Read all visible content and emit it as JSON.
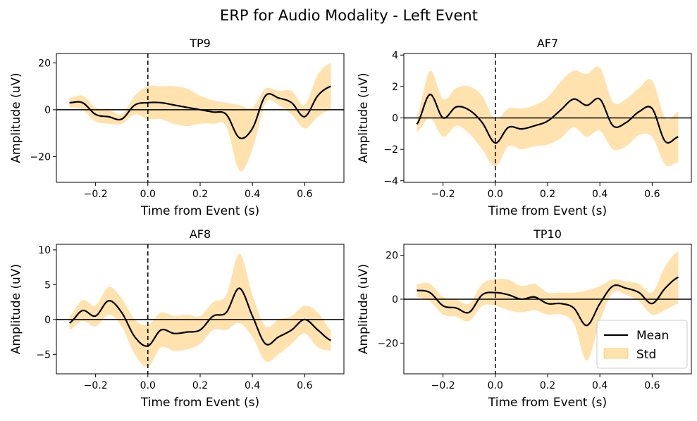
{
  "title": "ERP for Audio Modality - Left Event",
  "colors": {
    "mean_line": "#000000",
    "std_band": "#ffa500",
    "reference": "#000000"
  },
  "legend": {
    "placement": "lower-right",
    "mean_label": "Mean",
    "std_label": "Std"
  },
  "chart_data": [
    {
      "type": "line",
      "title": "TP9",
      "xlabel": "Time from Event (s)",
      "ylabel": "Amplitude (uV)",
      "xlim": [
        -0.35,
        0.75
      ],
      "ylim": [
        -31,
        24
      ],
      "xticks": [
        -0.2,
        0.0,
        0.2,
        0.4,
        0.6
      ],
      "xtick_labels": [
        "−0.2",
        "0.0",
        "0.2",
        "0.4",
        "0.6"
      ],
      "yticks": [
        -20,
        0,
        20
      ],
      "ytick_labels": [
        "−20",
        "0",
        "20"
      ],
      "x": [
        -0.3,
        -0.25,
        -0.2,
        -0.15,
        -0.1,
        -0.05,
        0.0,
        0.05,
        0.1,
        0.15,
        0.2,
        0.25,
        0.3,
        0.35,
        0.4,
        0.45,
        0.5,
        0.55,
        0.6,
        0.65,
        0.7
      ],
      "series": [
        {
          "values": [
            3,
            3,
            -2,
            -3,
            -4,
            2,
            3,
            3,
            2,
            1,
            0,
            -1,
            -2,
            -12,
            -8,
            6,
            5,
            3,
            -3,
            6,
            10
          ],
          "std": [
            2,
            3,
            3,
            3,
            2,
            4,
            7,
            7,
            8,
            8,
            6,
            5,
            5,
            14,
            9,
            3,
            3,
            5,
            5,
            9,
            10
          ]
        }
      ]
    },
    {
      "type": "line",
      "title": "AF7",
      "xlabel": "Time from Event (s)",
      "ylabel": "Amplitude (uV)",
      "xlim": [
        -0.35,
        0.75
      ],
      "ylim": [
        -4.1,
        4.1
      ],
      "xticks": [
        -0.2,
        0.0,
        0.2,
        0.4,
        0.6
      ],
      "xtick_labels": [
        "−0.2",
        "0.0",
        "0.2",
        "0.4",
        "0.6"
      ],
      "yticks": [
        -4,
        -2,
        0,
        2,
        4
      ],
      "ytick_labels": [
        "−4",
        "−2",
        "0",
        "2",
        "4"
      ],
      "x": [
        -0.3,
        -0.25,
        -0.2,
        -0.15,
        -0.1,
        -0.05,
        0.0,
        0.05,
        0.1,
        0.15,
        0.2,
        0.25,
        0.3,
        0.35,
        0.4,
        0.45,
        0.5,
        0.55,
        0.6,
        0.65,
        0.7
      ],
      "series": [
        {
          "values": [
            -0.4,
            1.5,
            0,
            0.7,
            0.5,
            -0.3,
            -1.6,
            -0.6,
            -0.7,
            -0.5,
            -0.2,
            0.5,
            1.2,
            0.8,
            1.2,
            -0.5,
            -0.3,
            0.4,
            0.6,
            -1.5,
            -1.2
          ],
          "std": [
            0.5,
            1.5,
            1.2,
            1.2,
            1.5,
            1.7,
            1.5,
            1.2,
            1.3,
            1.3,
            1.5,
            1.8,
            1.8,
            2.0,
            2.0,
            1.5,
            1.5,
            1.5,
            1.8,
            1.5,
            1.6
          ]
        }
      ]
    },
    {
      "type": "line",
      "title": "AF8",
      "xlabel": "Time from Event (s)",
      "ylabel": "Amplitude (uV)",
      "xlim": [
        -0.35,
        0.75
      ],
      "ylim": [
        -7.8,
        10.8
      ],
      "xticks": [
        -0.2,
        0.0,
        0.2,
        0.4,
        0.6
      ],
      "xtick_labels": [
        "−0.2",
        "0.0",
        "0.2",
        "0.4",
        "0.6"
      ],
      "yticks": [
        -5,
        0,
        5,
        10
      ],
      "ytick_labels": [
        "−5",
        "0",
        "5",
        "10"
      ],
      "x": [
        -0.3,
        -0.25,
        -0.2,
        -0.15,
        -0.1,
        -0.05,
        0.0,
        0.05,
        0.1,
        0.15,
        0.2,
        0.25,
        0.3,
        0.35,
        0.4,
        0.45,
        0.5,
        0.55,
        0.6,
        0.65,
        0.7
      ],
      "series": [
        {
          "values": [
            -0.5,
            1.3,
            0.5,
            2.7,
            1,
            -2.5,
            -3.8,
            -1.5,
            -2,
            -1.8,
            -1.5,
            0.5,
            1,
            4.5,
            0.5,
            -3.5,
            -2.5,
            -1.5,
            0,
            -1.5,
            -3
          ],
          "std": [
            1,
            1.5,
            1.5,
            2,
            2,
            2.5,
            3,
            2.5,
            2.5,
            2.5,
            2,
            2,
            2.5,
            5,
            3,
            2.5,
            2.5,
            2,
            2,
            2.5,
            1.5
          ]
        }
      ]
    },
    {
      "type": "line",
      "title": "TP10",
      "xlabel": "Time from Event (s)",
      "ylabel": "Amplitude (uV)",
      "xlim": [
        -0.35,
        0.75
      ],
      "ylim": [
        -34,
        25
      ],
      "xticks": [
        -0.2,
        0.0,
        0.2,
        0.4,
        0.6
      ],
      "xtick_labels": [
        "−0.2",
        "0.0",
        "0.2",
        "0.4",
        "0.6"
      ],
      "yticks": [
        -20,
        0,
        20
      ],
      "ytick_labels": [
        "−20",
        "0",
        "20"
      ],
      "x": [
        -0.3,
        -0.25,
        -0.2,
        -0.15,
        -0.1,
        -0.05,
        0.0,
        0.05,
        0.1,
        0.15,
        0.2,
        0.25,
        0.3,
        0.35,
        0.4,
        0.45,
        0.5,
        0.55,
        0.6,
        0.65,
        0.7
      ],
      "series": [
        {
          "values": [
            4,
            3,
            -3,
            -4,
            -6,
            2,
            3,
            2,
            0,
            1,
            -2,
            -2,
            -4,
            -12,
            -2,
            6,
            5,
            3,
            -2,
            5,
            10
          ],
          "std": [
            3,
            4,
            4,
            4,
            4,
            5,
            6,
            7,
            6,
            6,
            5,
            5,
            7,
            16,
            8,
            3,
            3,
            4,
            5,
            10,
            12
          ]
        }
      ]
    }
  ]
}
